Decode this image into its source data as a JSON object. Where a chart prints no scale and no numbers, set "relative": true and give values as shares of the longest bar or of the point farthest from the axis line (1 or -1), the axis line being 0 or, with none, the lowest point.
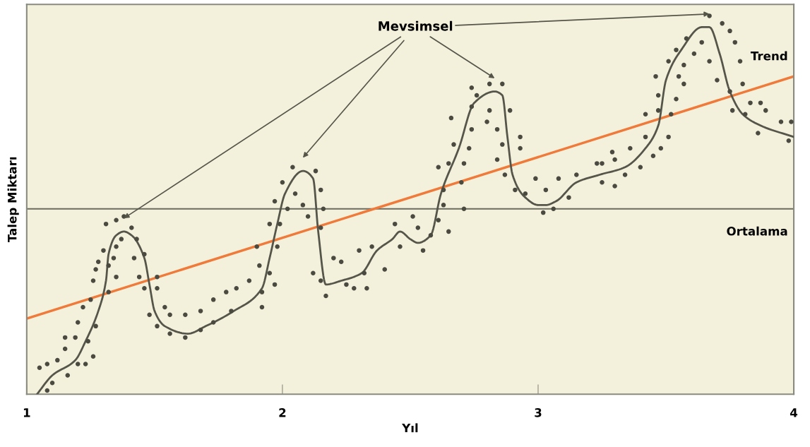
{
  "chart_data": {
    "type": "scatter",
    "xlabel": "Yıl",
    "ylabel": "Talep Miktarı",
    "relative": true,
    "xlim": [
      1,
      4
    ],
    "xticks": [
      1,
      2,
      3,
      4
    ],
    "grid": false,
    "annotations": [
      "Mevsimsel"
    ],
    "ref_lines": [
      {
        "axis": "y",
        "value": 0.49,
        "label": "Ortalama",
        "color": "#6b6b60"
      }
    ],
    "series": [
      {
        "color": "#4a4a40",
        "marker": "circle",
        "x": [
          1.05,
          1.08,
          1.12,
          1.08,
          1.1,
          1.15,
          1.19,
          1.15,
          1.16,
          1.2,
          1.2,
          1.23,
          1.22,
          1.24,
          1.25,
          1.26,
          1.26,
          1.27,
          1.27,
          1.28,
          1.3,
          1.32,
          1.32,
          1.31,
          1.34,
          1.35,
          1.35,
          1.35,
          1.37,
          1.38,
          1.41,
          1.42,
          1.43,
          1.44,
          1.46,
          1.46,
          1.48,
          1.51,
          1.51,
          1.51,
          1.54,
          1.56,
          1.56,
          1.62,
          1.62,
          1.68,
          1.68,
          1.73,
          1.73,
          1.78,
          1.8,
          1.82,
          1.87,
          1.9,
          1.91,
          1.92,
          1.92,
          1.95,
          1.95,
          1.97,
          1.97,
          1.98,
          1.99,
          2.0,
          2.02,
          2.04,
          2.05,
          2.08,
          2.1,
          2.13,
          2.15,
          2.15,
          2.16,
          2.12,
          2.15,
          2.17,
          2.2,
          2.23,
          2.25,
          2.28,
          2.3,
          2.32,
          2.33,
          2.35,
          2.4,
          2.44,
          2.46,
          2.51,
          2.53,
          2.55,
          2.58,
          2.61,
          2.61,
          2.63,
          2.65,
          2.63,
          2.65,
          2.66,
          2.67,
          2.7,
          2.71,
          2.71,
          2.73,
          2.74,
          2.74,
          2.76,
          2.74,
          2.8,
          2.81,
          2.81,
          2.84,
          2.86,
          2.84,
          2.86,
          2.87,
          2.89,
          2.91,
          2.93,
          2.93,
          2.95,
          2.99,
          3.03,
          3.02,
          3.06,
          3.08,
          3.12,
          3.15,
          3.23,
          3.25,
          3.25,
          3.29,
          3.3,
          3.3,
          3.34,
          3.36,
          3.4,
          3.42,
          3.42,
          3.45,
          3.46,
          3.47,
          3.47,
          3.48,
          3.51,
          3.51,
          3.52,
          3.54,
          3.54,
          3.55,
          3.57,
          3.57,
          3.58,
          3.61,
          3.64,
          3.67,
          3.67,
          3.7,
          3.72,
          3.75,
          3.75,
          3.76,
          3.77,
          3.79,
          3.8,
          3.81,
          3.83,
          3.86,
          3.87,
          3.89,
          3.95,
          3.98,
          3.99
        ],
        "values": [
          0.07,
          0.08,
          0.09,
          0.01,
          0.03,
          0.15,
          0.15,
          0.12,
          0.05,
          0.08,
          0.19,
          0.08,
          0.23,
          0.14,
          0.25,
          0.1,
          0.3,
          0.18,
          0.33,
          0.35,
          0.38,
          0.34,
          0.27,
          0.45,
          0.36,
          0.46,
          0.31,
          0.39,
          0.41,
          0.47,
          0.44,
          0.36,
          0.41,
          0.31,
          0.37,
          0.28,
          0.21,
          0.18,
          0.31,
          0.28,
          0.23,
          0.21,
          0.16,
          0.21,
          0.15,
          0.22,
          0.17,
          0.25,
          0.19,
          0.27,
          0.22,
          0.28,
          0.3,
          0.39,
          0.34,
          0.27,
          0.23,
          0.45,
          0.32,
          0.29,
          0.51,
          0.39,
          0.45,
          0.56,
          0.49,
          0.6,
          0.53,
          0.5,
          0.47,
          0.59,
          0.54,
          0.44,
          0.49,
          0.32,
          0.3,
          0.26,
          0.36,
          0.35,
          0.29,
          0.28,
          0.38,
          0.32,
          0.28,
          0.39,
          0.33,
          0.45,
          0.39,
          0.47,
          0.44,
          0.38,
          0.42,
          0.46,
          0.6,
          0.54,
          0.61,
          0.5,
          0.43,
          0.73,
          0.66,
          0.56,
          0.61,
          0.49,
          0.65,
          0.81,
          0.7,
          0.79,
          0.76,
          0.72,
          0.75,
          0.82,
          0.7,
          0.82,
          0.62,
          0.66,
          0.58,
          0.75,
          0.54,
          0.65,
          0.68,
          0.53,
          0.57,
          0.54,
          0.48,
          0.49,
          0.57,
          0.52,
          0.58,
          0.61,
          0.61,
          0.56,
          0.64,
          0.55,
          0.62,
          0.58,
          0.65,
          0.6,
          0.74,
          0.68,
          0.63,
          0.84,
          0.79,
          0.75,
          0.65,
          0.88,
          0.68,
          0.74,
          0.78,
          0.91,
          0.84,
          0.82,
          0.87,
          0.94,
          0.9,
          0.93,
          1.0,
          0.88,
          0.83,
          0.98,
          0.96,
          0.8,
          0.75,
          0.93,
          0.88,
          0.82,
          0.74,
          0.77,
          0.69,
          0.77,
          0.75,
          0.72,
          0.67,
          0.72
        ]
      },
      {
        "type": "line",
        "color": "#55554a",
        "line_style": "solid",
        "x": [
          1.04,
          1.1,
          1.19,
          1.23,
          1.28,
          1.31,
          1.32,
          1.35,
          1.38,
          1.41,
          1.46,
          1.48,
          1.5,
          1.54,
          1.63,
          1.7,
          1.81,
          1.92,
          1.95,
          1.98,
          2.01,
          2.08,
          2.12,
          2.14,
          2.17,
          2.23,
          2.31,
          2.37,
          2.43,
          2.46,
          2.5,
          2.53,
          2.58,
          2.62,
          2.69,
          2.75,
          2.83,
          2.86,
          2.88,
          2.9,
          2.95,
          3.0,
          3.03,
          3.07,
          3.15,
          3.24,
          3.34,
          3.42,
          3.47,
          3.5,
          3.56,
          3.64,
          3.67,
          3.71,
          3.75,
          3.8,
          3.87,
          4.0
        ],
        "values": [
          0.0,
          0.05,
          0.09,
          0.14,
          0.22,
          0.3,
          0.37,
          0.42,
          0.43,
          0.42,
          0.36,
          0.29,
          0.22,
          0.18,
          0.16,
          0.18,
          0.22,
          0.28,
          0.36,
          0.45,
          0.53,
          0.59,
          0.57,
          0.43,
          0.29,
          0.3,
          0.32,
          0.38,
          0.41,
          0.43,
          0.41,
          0.4,
          0.42,
          0.53,
          0.65,
          0.77,
          0.8,
          0.79,
          0.68,
          0.58,
          0.52,
          0.5,
          0.5,
          0.51,
          0.56,
          0.58,
          0.6,
          0.65,
          0.71,
          0.83,
          0.91,
          0.97,
          0.97,
          0.9,
          0.8,
          0.74,
          0.71,
          0.68
        ]
      },
      {
        "type": "line",
        "name": "Trend",
        "color": "#f07a3a",
        "line_style": "solid",
        "x": [
          1,
          4
        ],
        "values": [
          0.2,
          0.84
        ]
      }
    ]
  }
}
